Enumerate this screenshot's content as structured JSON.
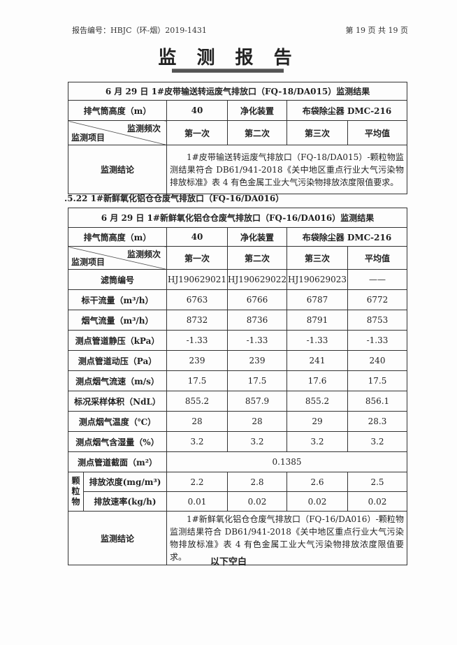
{
  "header": {
    "report_no": "报告编号：HBJC（环-烟）2019-1431",
    "page": "第 19 页 共 19 页"
  },
  "title": "监 测 报 告",
  "table1": {
    "caption": "6 月 29 日 1#皮带输送转运废气排放口（FQ-18/DA015）监测结果",
    "height_label": "排气筒高度（m）",
    "height": "40",
    "device_label": "净化装置",
    "device": "布袋除尘器 DMC-216",
    "freq_label": "监测频次",
    "item_label": "监测项目",
    "cols": [
      "第一次",
      "第二次",
      "第三次",
      "平均值"
    ],
    "conclusion_label": "监测结论",
    "conclusion": "1#皮带输送转运废气排放口（FQ-18/DA015）-颗粒物监测结果符合 DB61/941-2018《关中地区重点行业大气污染物排放标准》表 4 有色金属工业大气污染物排放浓度限值要求。"
  },
  "section_heading": ".5.22   1#新鲜氧化铝仓仓废气排放口（FQ-16/DA016）",
  "table2": {
    "caption": "6 月 29 日 1#新鲜氧化铝仓仓废气排放口（FQ-16/DA016）监测结果",
    "height_label": "排气筒高度（m）",
    "height": "40",
    "device_label": "净化装置",
    "device": "布袋除尘器 DMC-216",
    "freq_label": "监测频次",
    "item_label": "监测项目",
    "cols": [
      "第一次",
      "第二次",
      "第三次",
      "平均值"
    ],
    "rows": [
      {
        "label": "滤筒编号",
        "values": [
          "HJ190629021",
          "HJ190629022",
          "HJ190629023",
          "——"
        ]
      },
      {
        "label": "标干流量（m³/h）",
        "values": [
          "6763",
          "6766",
          "6787",
          "6772"
        ]
      },
      {
        "label": "烟气流量（m³/h）",
        "values": [
          "8732",
          "8736",
          "8791",
          "8753"
        ]
      },
      {
        "label": "测点管道静压（kPa）",
        "values": [
          "-1.33",
          "-1.33",
          "-1.33",
          "-1.33"
        ]
      },
      {
        "label": "测点管道动压（Pa）",
        "values": [
          "239",
          "239",
          "241",
          "240"
        ]
      },
      {
        "label": "测点烟气流速（m/s）",
        "values": [
          "17.5",
          "17.5",
          "17.6",
          "17.5"
        ]
      },
      {
        "label": "标况采样体积（NdL）",
        "values": [
          "855.2",
          "857.9",
          "855.2",
          "856.1"
        ]
      },
      {
        "label": "测点烟气温度（℃）",
        "values": [
          "28",
          "28",
          "29",
          "28.3"
        ]
      },
      {
        "label": "测点烟气含湿量（%）",
        "values": [
          "3.2",
          "3.2",
          "3.2",
          "3.2"
        ]
      }
    ],
    "section_label": "测点管道截面（m²）",
    "section_value": "0.1385",
    "pm_label": "颗粒物",
    "pm_rows": [
      {
        "label": "排放浓度(mg/m³)",
        "values": [
          "2.2",
          "2.8",
          "2.6",
          "2.5"
        ]
      },
      {
        "label": "排放速率(kg/h)",
        "values": [
          "0.01",
          "0.02",
          "0.02",
          "0.02"
        ]
      }
    ],
    "conclusion_label": "监测结论",
    "conclusion": "1#新鲜氧化铝仓仓废气排放口（FQ-16/DA016）-颗粒物监测结果符合 DB61/941-2018《关中地区重点行业大气污染物排放标准》表 4 有色金属工业大气污染物排放浓度限值要求。"
  },
  "footer": "以下空白"
}
